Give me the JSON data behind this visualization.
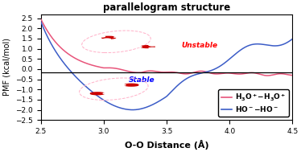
{
  "title": "parallelogram structure",
  "xlabel": "O-O Distance (Å)",
  "ylabel": "PMF (kcal/mol)",
  "xlim": [
    2.5,
    4.5
  ],
  "ylim": [
    -2.5,
    2.7
  ],
  "yticks": [
    -2.5,
    -2.0,
    -1.5,
    -1.0,
    -0.5,
    0.0,
    0.5,
    1.0,
    1.5,
    2.0,
    2.5
  ],
  "xticks": [
    2.5,
    3.0,
    3.5,
    4.0,
    4.5
  ],
  "hline_y": -0.18,
  "pink_color": "#E8547A",
  "blue_color": "#3B5CC7",
  "bg_color": "#FFFFFF"
}
